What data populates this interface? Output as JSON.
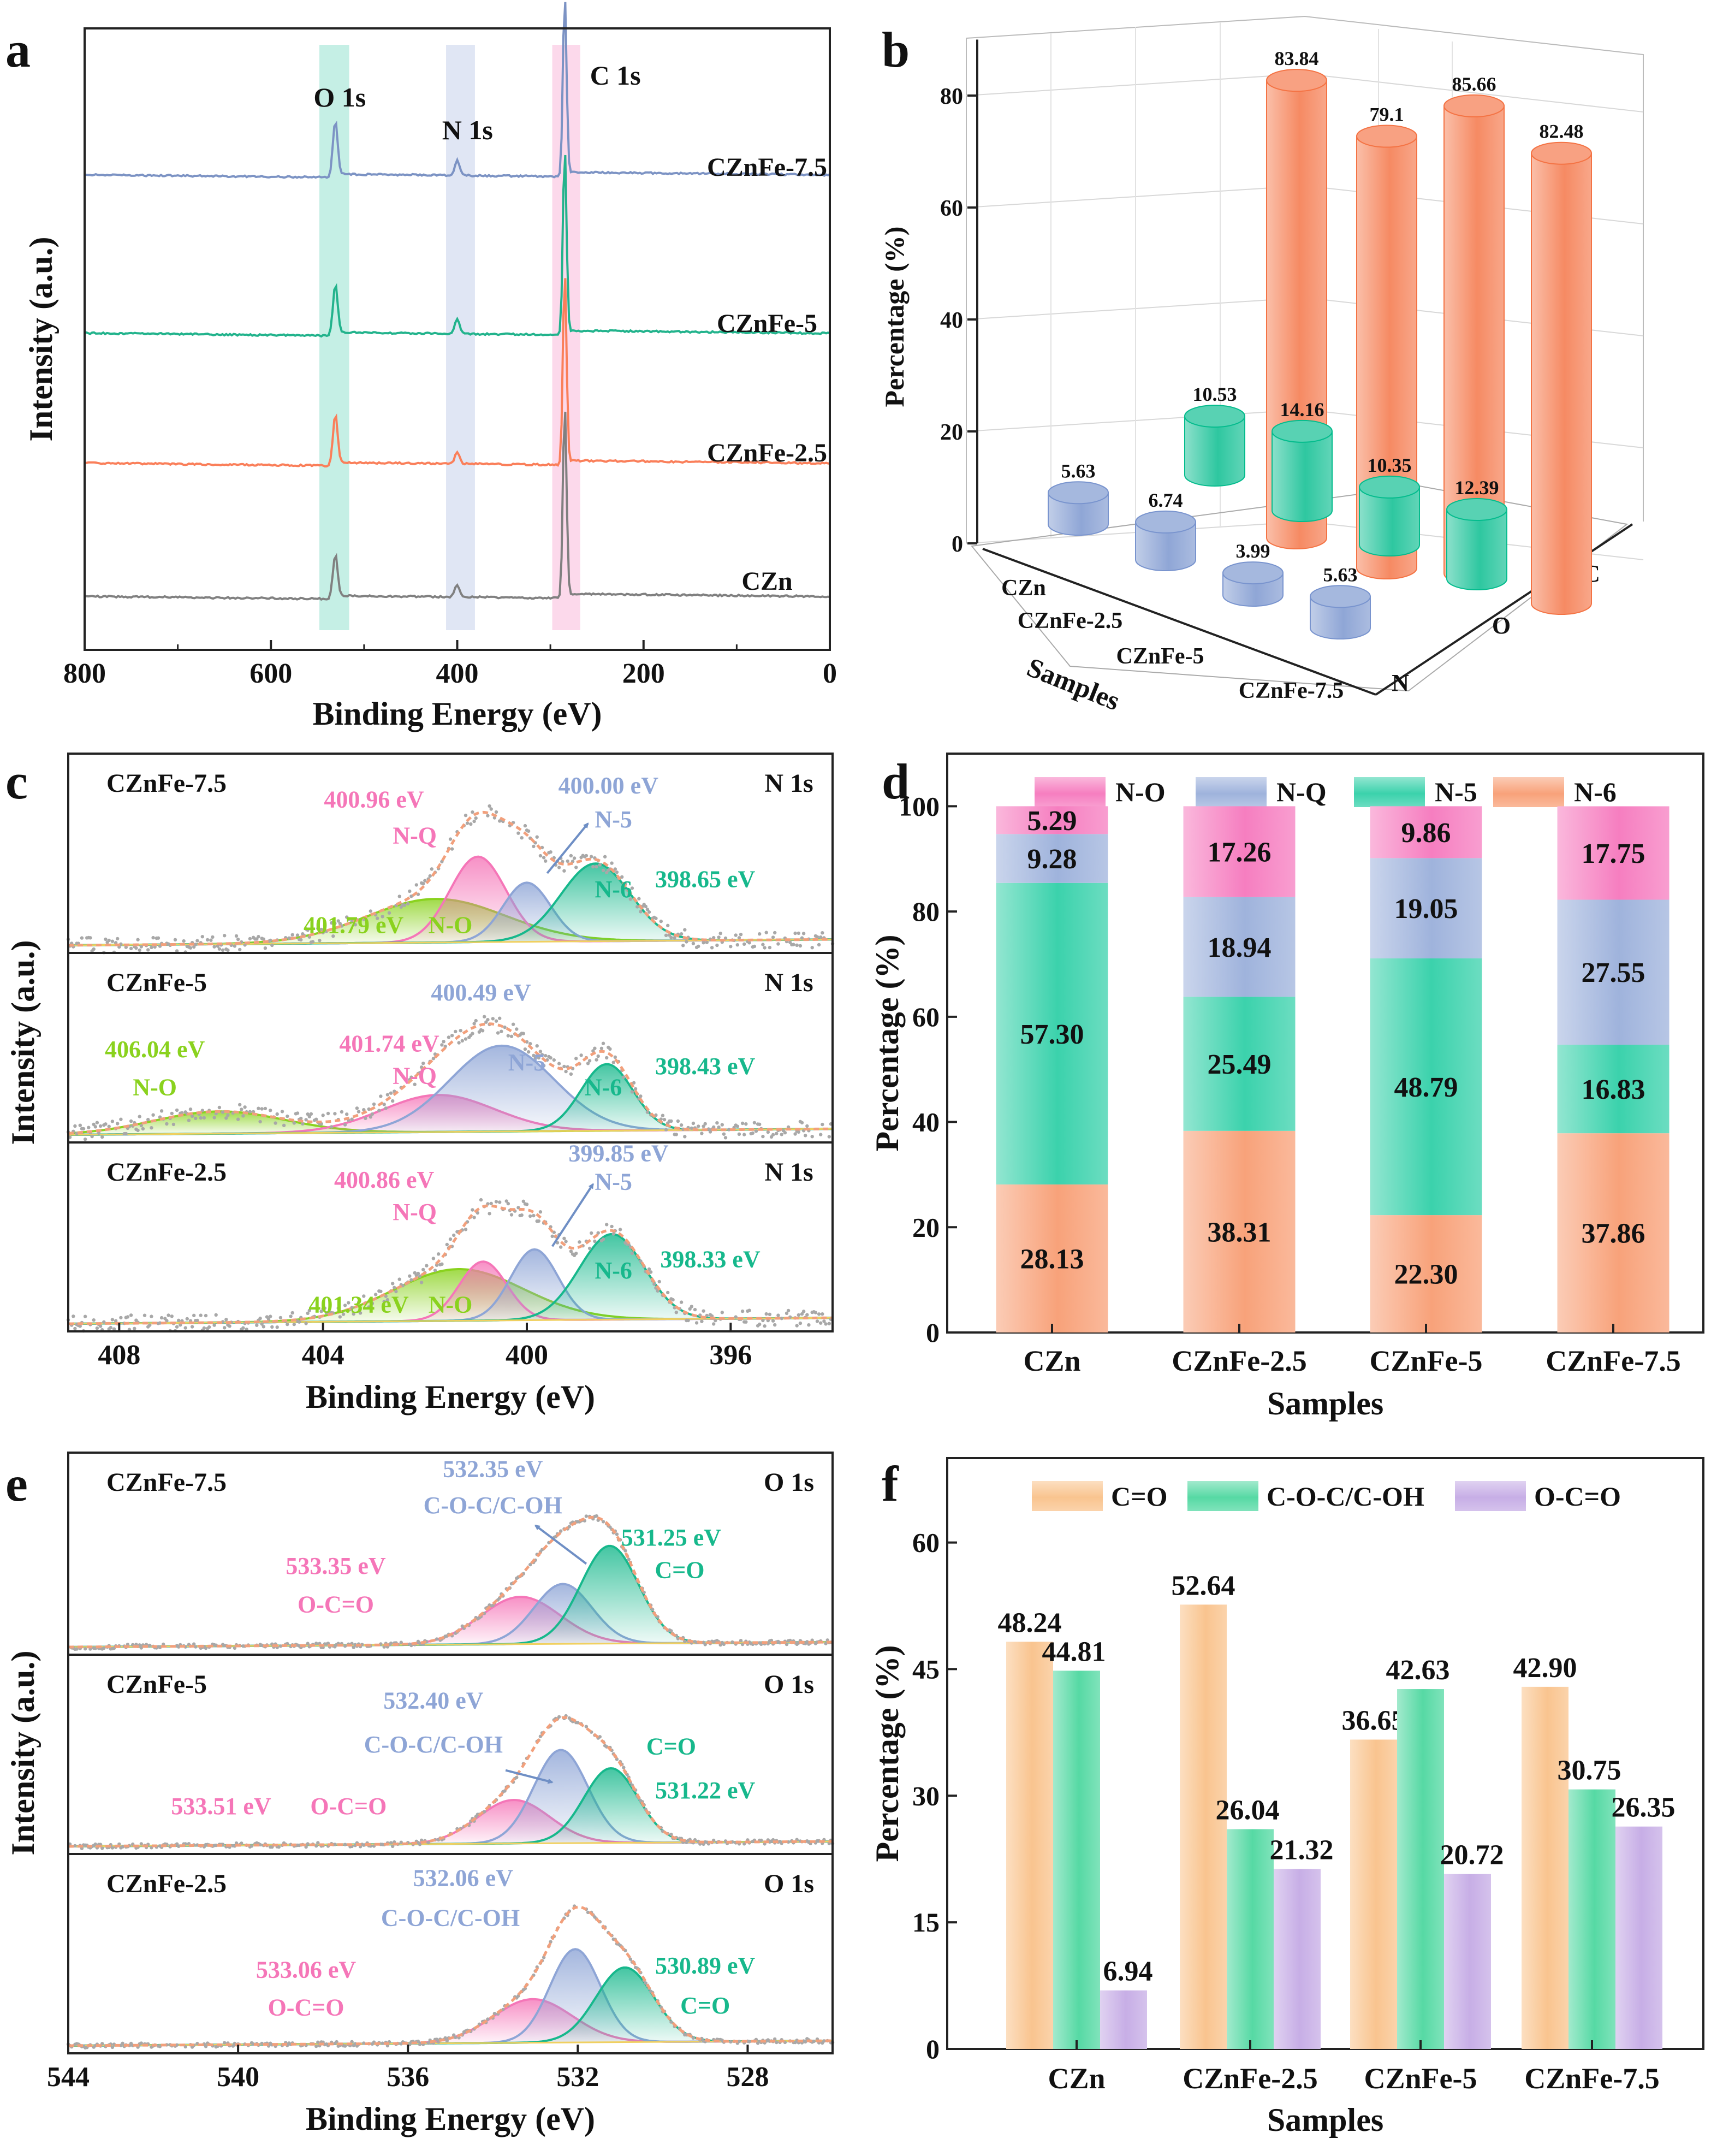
{
  "colors": {
    "CZn": "#808080",
    "CZnFe-2.5": "#fa7f5a",
    "CZnFe-5": "#22b38c",
    "CZnFe-7.5": "#7c93c4",
    "N": "#8fa6d6",
    "O": "#2ec7a0",
    "C": "#f68a63",
    "N-O": "#f67ec0",
    "N-Q": "#9fb3dc",
    "N-5": "#3bd2ac",
    "N-6": "#f8a27a",
    "C=O": "#f9c48f",
    "C-O-C/C-OH": "#56d9a4",
    "O-C=O": "#c7aee6",
    "pink": "#f576b8",
    "blue": "#8ea5d6",
    "teal": "#17b88c",
    "green": "#8ad21e",
    "fit": "#f2a07c"
  },
  "chart_data": [
    {
      "panel": "a",
      "type": "line",
      "xlabel": "Binding Energy (eV)",
      "ylabel": "Intensity (a.u.)",
      "xlim": [
        800,
        0
      ],
      "xticks": [
        "800",
        "600",
        "400",
        "200",
        "0"
      ],
      "bands": [
        "O 1s",
        "N 1s",
        "C 1s"
      ],
      "series": [
        {
          "name": "CZnFe-7.5",
          "peaks": [
            {
              "x": 531,
              "h": 0.18
            },
            {
              "x": 400,
              "h": 0.05
            },
            {
              "x": 284.6,
              "h": 0.6
            }
          ]
        },
        {
          "name": "CZnFe-5",
          "peaks": [
            {
              "x": 531,
              "h": 0.16
            },
            {
              "x": 400,
              "h": 0.05
            },
            {
              "x": 284.6,
              "h": 0.62
            }
          ]
        },
        {
          "name": "CZnFe-2.5",
          "peaks": [
            {
              "x": 531,
              "h": 0.16
            },
            {
              "x": 400,
              "h": 0.04
            },
            {
              "x": 284.6,
              "h": 0.64
            }
          ]
        },
        {
          "name": "CZn",
          "peaks": [
            {
              "x": 531,
              "h": 0.14
            },
            {
              "x": 400,
              "h": 0.04
            },
            {
              "x": 284.6,
              "h": 0.64
            }
          ]
        }
      ]
    },
    {
      "panel": "b",
      "type": "bar",
      "title": "",
      "xlabel": "Samples",
      "ylabel": "Percentage (%)",
      "ylim": [
        0,
        90
      ],
      "yticks": [
        "0",
        "20",
        "40",
        "60",
        "80"
      ],
      "categories": [
        "CZn",
        "CZnFe-2.5",
        "CZnFe-5",
        "CZnFe-7.5"
      ],
      "series": [
        {
          "name": "N",
          "values": [
            5.63,
            6.74,
            3.99,
            5.63
          ]
        },
        {
          "name": "O",
          "values": [
            10.53,
            14.16,
            10.35,
            12.39
          ]
        },
        {
          "name": "C",
          "values": [
            83.84,
            79.1,
            85.66,
            82.48
          ]
        }
      ],
      "value_labels": {
        "N": [
          "5.63",
          "6.74",
          "3.99",
          "5.63"
        ],
        "O": [
          "10.53",
          "14.16",
          "10.35",
          "12.39"
        ],
        "C": [
          "83.84",
          "79.1",
          "85.66",
          "82.48"
        ]
      }
    },
    {
      "panel": "c",
      "type": "line",
      "xlabel": "Binding Energy (eV)",
      "ylabel": "Intensity (a.u.)",
      "xlim": [
        409,
        394
      ],
      "xticks": [
        "408",
        "404",
        "400",
        "396"
      ],
      "subplots": [
        {
          "sample": "CZnFe-7.5",
          "region": "N 1s",
          "peaks": [
            {
              "name": "N-O",
              "center": 401.79,
              "height": 0.28,
              "fwhm": 3.2,
              "color": "green"
            },
            {
              "name": "N-Q",
              "center": 400.96,
              "height": 0.55,
              "fwhm": 1.3,
              "color": "pink"
            },
            {
              "name": "N-5",
              "center": 400.0,
              "height": 0.38,
              "fwhm": 1.1,
              "color": "blue"
            },
            {
              "name": "N-6",
              "center": 398.65,
              "height": 0.5,
              "fwhm": 1.6,
              "color": "teal"
            }
          ],
          "labels": [
            {
              "text": "400.96 eV",
              "color": "pink",
              "ev": 403.0,
              "f": 0.27
            },
            {
              "text": "N-Q",
              "color": "pink",
              "ev": 402.2,
              "f": 0.45
            },
            {
              "text": "400.00 eV",
              "color": "blue",
              "ev": 398.4,
              "f": 0.2
            },
            {
              "text": "N-5",
              "color": "blue",
              "ev": 398.3,
              "f": 0.37
            },
            {
              "text": "N-6",
              "color": "teal",
              "ev": 398.3,
              "f": 0.72
            },
            {
              "text": "398.65 eV",
              "color": "teal",
              "ev": 396.5,
              "f": 0.67
            },
            {
              "text": "401.79 eV",
              "color": "green",
              "ev": 403.4,
              "f": 0.9
            },
            {
              "text": "N-O",
              "color": "green",
              "ev": 401.5,
              "f": 0.9
            }
          ],
          "arrow": {
            "ev1": 399.6,
            "f1": 0.6,
            "ev2": 398.8,
            "f2": 0.35
          }
        },
        {
          "sample": "CZnFe-5",
          "region": "N 1s",
          "peaks": [
            {
              "name": "N-O",
              "center": 406.04,
              "height": 0.15,
              "fwhm": 3.0,
              "color": "green"
            },
            {
              "name": "N-Q",
              "center": 401.74,
              "height": 0.25,
              "fwhm": 2.6,
              "color": "pink"
            },
            {
              "name": "N-5",
              "center": 400.49,
              "height": 0.58,
              "fwhm": 2.4,
              "color": "blue"
            },
            {
              "name": "N-6",
              "center": 398.43,
              "height": 0.45,
              "fwhm": 1.2,
              "color": "teal"
            }
          ],
          "labels": [
            {
              "text": "400.49 eV",
              "color": "blue",
              "ev": 400.9,
              "f": 0.25
            },
            {
              "text": "406.04 eV",
              "color": "green",
              "ev": 407.3,
              "f": 0.55
            },
            {
              "text": "N-O",
              "color": "green",
              "ev": 407.3,
              "f": 0.75
            },
            {
              "text": "401.74 eV",
              "color": "pink",
              "ev": 402.7,
              "f": 0.52
            },
            {
              "text": "N-Q",
              "color": "pink",
              "ev": 402.2,
              "f": 0.69
            },
            {
              "text": "N-5",
              "color": "blue",
              "ev": 400.0,
              "f": 0.62
            },
            {
              "text": "N-6",
              "color": "teal",
              "ev": 398.5,
              "f": 0.75
            },
            {
              "text": "398.43 eV",
              "color": "teal",
              "ev": 396.5,
              "f": 0.64
            }
          ],
          "arrow": null
        },
        {
          "sample": "CZnFe-2.5",
          "region": "N 1s",
          "peaks": [
            {
              "name": "N-O",
              "center": 401.34,
              "height": 0.35,
              "fwhm": 3.0,
              "color": "green"
            },
            {
              "name": "N-Q",
              "center": 400.86,
              "height": 0.4,
              "fwhm": 1.1,
              "color": "pink"
            },
            {
              "name": "N-5",
              "center": 399.85,
              "height": 0.48,
              "fwhm": 1.1,
              "color": "blue"
            },
            {
              "name": "N-6",
              "center": 398.33,
              "height": 0.58,
              "fwhm": 1.5,
              "color": "teal"
            }
          ],
          "labels": [
            {
              "text": "400.86 eV",
              "color": "pink",
              "ev": 402.8,
              "f": 0.24
            },
            {
              "text": "N-Q",
              "color": "pink",
              "ev": 402.2,
              "f": 0.41
            },
            {
              "text": "399.85 eV",
              "color": "blue",
              "ev": 398.2,
              "f": 0.1
            },
            {
              "text": "N-5",
              "color": "blue",
              "ev": 398.3,
              "f": 0.25
            },
            {
              "text": "N-6",
              "color": "teal",
              "ev": 398.3,
              "f": 0.72
            },
            {
              "text": "398.33 eV",
              "color": "teal",
              "ev": 396.4,
              "f": 0.66
            },
            {
              "text": "401.34 eV",
              "color": "green",
              "ev": 403.3,
              "f": 0.9
            },
            {
              "text": "N-O",
              "color": "green",
              "ev": 401.5,
              "f": 0.9
            }
          ],
          "arrow": {
            "ev1": 399.5,
            "f1": 0.55,
            "ev2": 398.7,
            "f2": 0.22
          }
        }
      ]
    },
    {
      "panel": "d",
      "type": "bar",
      "stacked": true,
      "xlabel": "Samples",
      "ylabel": "Percentage (%)",
      "ylim": [
        0,
        110
      ],
      "yticks": [
        "0",
        "20",
        "40",
        "60",
        "80",
        "100"
      ],
      "categories": [
        "CZn",
        "CZnFe-2.5",
        "CZnFe-5",
        "CZnFe-7.5"
      ],
      "legend": [
        "N-O",
        "N-Q",
        "N-5",
        "N-6"
      ],
      "series": [
        {
          "name": "N-6",
          "values": [
            28.13,
            38.31,
            22.3,
            37.86
          ],
          "labels": [
            "28.13",
            "38.31",
            "22.30",
            "37.86"
          ]
        },
        {
          "name": "N-5",
          "values": [
            57.3,
            25.49,
            48.79,
            16.83
          ],
          "labels": [
            "57.30",
            "25.49",
            "48.79",
            "16.83"
          ]
        },
        {
          "name": "N-Q",
          "values": [
            9.28,
            18.94,
            19.05,
            27.55
          ],
          "labels": [
            "9.28",
            "18.94",
            "19.05",
            "27.55"
          ]
        },
        {
          "name": "N-O",
          "values": [
            5.29,
            17.26,
            9.86,
            17.75
          ],
          "labels": [
            "5.29",
            "17.26",
            "9.86",
            "17.75"
          ]
        }
      ]
    },
    {
      "panel": "e",
      "type": "line",
      "xlabel": "Binding Energy (eV)",
      "ylabel": "Intensity (a.u.)",
      "xlim": [
        544,
        526
      ],
      "xticks": [
        "544",
        "540",
        "536",
        "532",
        "528"
      ],
      "subplots": [
        {
          "sample": "CZnFe-7.5",
          "region": "O 1s",
          "peaks": [
            {
              "name": "O-C=O",
              "center": 533.35,
              "height": 0.3,
              "fwhm": 2.2,
              "color": "pink"
            },
            {
              "name": "C-O-C/C-OH",
              "center": 532.35,
              "height": 0.38,
              "fwhm": 1.6,
              "color": "blue"
            },
            {
              "name": "C=O",
              "center": 531.25,
              "height": 0.62,
              "fwhm": 1.6,
              "color": "teal"
            }
          ],
          "labels": [
            {
              "text": "532.35 eV",
              "color": "blue",
              "ev": 534.0,
              "f": 0.12
            },
            {
              "text": "C-O-C/C-OH",
              "color": "blue",
              "ev": 534.0,
              "f": 0.3
            },
            {
              "text": "531.25 eV",
              "color": "teal",
              "ev": 529.8,
              "f": 0.46
            },
            {
              "text": "C=O",
              "color": "teal",
              "ev": 529.6,
              "f": 0.62
            },
            {
              "text": "533.35 eV",
              "color": "pink",
              "ev": 537.7,
              "f": 0.6
            },
            {
              "text": "O-C=O",
              "color": "pink",
              "ev": 537.7,
              "f": 0.79
            }
          ],
          "arrow": {
            "ev1": 531.8,
            "f1": 0.55,
            "ev2": 533.0,
            "f2": 0.36
          }
        },
        {
          "sample": "CZnFe-5",
          "region": "O 1s",
          "peaks": [
            {
              "name": "O-C=O",
              "center": 533.51,
              "height": 0.28,
              "fwhm": 2.0,
              "color": "pink"
            },
            {
              "name": "C-O-C/C-OH",
              "center": 532.4,
              "height": 0.6,
              "fwhm": 1.5,
              "color": "blue"
            },
            {
              "name": "C=O",
              "center": 531.22,
              "height": 0.48,
              "fwhm": 1.5,
              "color": "teal"
            }
          ],
          "labels": [
            {
              "text": "532.40 eV",
              "color": "blue",
              "ev": 535.4,
              "f": 0.27
            },
            {
              "text": "C-O-C/C-OH",
              "color": "blue",
              "ev": 535.4,
              "f": 0.49
            },
            {
              "text": "533.51 eV",
              "color": "pink",
              "ev": 540.4,
              "f": 0.8
            },
            {
              "text": "O-C=O",
              "color": "pink",
              "ev": 537.4,
              "f": 0.8
            },
            {
              "text": "C=O",
              "color": "teal",
              "ev": 529.8,
              "f": 0.5
            },
            {
              "text": "531.22 eV",
              "color": "teal",
              "ev": 529.0,
              "f": 0.72
            }
          ],
          "arrow": {
            "ev1": 533.7,
            "f1": 0.58,
            "ev2": 532.6,
            "f2": 0.64
          }
        },
        {
          "sample": "CZnFe-2.5",
          "region": "O 1s",
          "peaks": [
            {
              "name": "O-C=O",
              "center": 533.06,
              "height": 0.28,
              "fwhm": 2.2,
              "color": "pink"
            },
            {
              "name": "C-O-C/C-OH",
              "center": 532.06,
              "height": 0.6,
              "fwhm": 1.4,
              "color": "blue"
            },
            {
              "name": "C=O",
              "center": 530.89,
              "height": 0.48,
              "fwhm": 1.6,
              "color": "teal"
            }
          ],
          "labels": [
            {
              "text": "532.06 eV",
              "color": "blue",
              "ev": 534.7,
              "f": 0.16
            },
            {
              "text": "C-O-C/C-OH",
              "color": "blue",
              "ev": 535.0,
              "f": 0.36
            },
            {
              "text": "530.89 eV",
              "color": "teal",
              "ev": 529.0,
              "f": 0.6
            },
            {
              "text": "C=O",
              "color": "teal",
              "ev": 529.0,
              "f": 0.8
            },
            {
              "text": "533.06 eV",
              "color": "pink",
              "ev": 538.4,
              "f": 0.62
            },
            {
              "text": "O-C=O",
              "color": "pink",
              "ev": 538.4,
              "f": 0.81
            }
          ],
          "arrow": null
        }
      ]
    },
    {
      "panel": "f",
      "type": "bar",
      "xlabel": "Samples",
      "ylabel": "Percentage (%)",
      "ylim": [
        0,
        70
      ],
      "yticks": [
        "0",
        "15",
        "30",
        "45",
        "60"
      ],
      "categories": [
        "CZn",
        "CZnFe-2.5",
        "CZnFe-5",
        "CZnFe-7.5"
      ],
      "series": [
        {
          "name": "C=O",
          "values": [
            48.24,
            52.64,
            36.65,
            42.9
          ],
          "labels": [
            "48.24",
            "52.64",
            "36.65",
            "42.90"
          ]
        },
        {
          "name": "C-O-C/C-OH",
          "values": [
            44.81,
            26.04,
            42.63,
            30.75
          ],
          "labels": [
            "44.81",
            "26.04",
            "42.63",
            "30.75"
          ]
        },
        {
          "name": "O-C=O",
          "values": [
            6.94,
            21.32,
            20.72,
            26.35
          ],
          "labels": [
            "6.94",
            "21.32",
            "20.72",
            "26.35"
          ]
        }
      ]
    }
  ]
}
